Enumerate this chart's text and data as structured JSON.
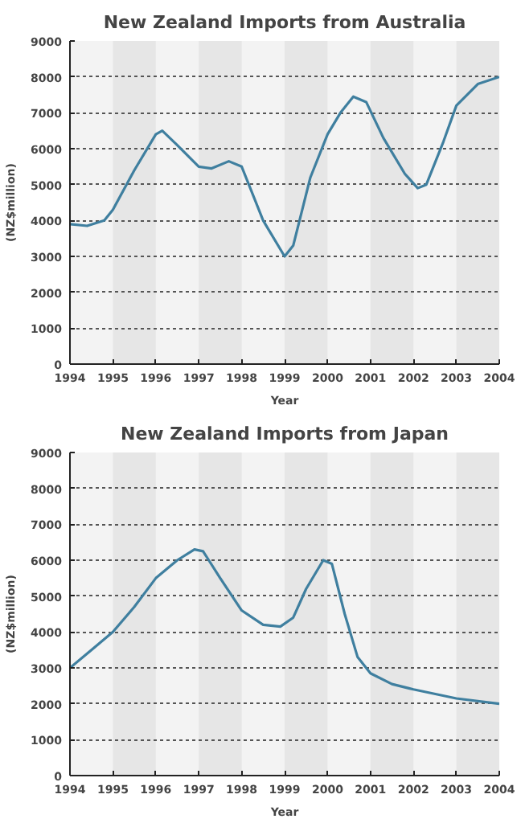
{
  "chart_data": [
    {
      "type": "line",
      "title": "New Zealand Imports from Australia",
      "xlabel": "Year",
      "ylabel": "(NZ$million)",
      "x": [
        1994,
        1994.4,
        1994.8,
        1995,
        1995.5,
        1996,
        1996.15,
        1996.5,
        1997,
        1997.3,
        1997.7,
        1998,
        1998.5,
        1999,
        1999.2,
        1999.6,
        2000,
        2000.3,
        2000.6,
        2000.9,
        2001.3,
        2001.8,
        2002.1,
        2002.3,
        2002.7,
        2003,
        2003.5,
        2004
      ],
      "series": [
        {
          "color": "#3f7f9f",
          "values": [
            3900,
            3850,
            4000,
            4300,
            5400,
            6400,
            6500,
            6100,
            5500,
            5450,
            5650,
            5500,
            4000,
            3000,
            3300,
            5200,
            6400,
            7000,
            7450,
            7300,
            6300,
            5300,
            4900,
            5000,
            6200,
            7200,
            7800,
            8000
          ]
        }
      ],
      "xlim": [
        1994,
        2004
      ],
      "xticks": [
        1994,
        1995,
        1996,
        1997,
        1998,
        1999,
        2000,
        2001,
        2002,
        2003,
        2004
      ],
      "ylim": [
        0,
        9000
      ],
      "yticks": [
        0,
        1000,
        2000,
        3000,
        4000,
        5000,
        6000,
        7000,
        8000,
        9000
      ],
      "grid": "y",
      "line_style": "solid",
      "bands": [
        {
          "axis": "x",
          "from": 1995,
          "to": 1996,
          "color": "#e6e6e6"
        },
        {
          "axis": "x",
          "from": 1997,
          "to": 1998,
          "color": "#e6e6e6"
        },
        {
          "axis": "x",
          "from": 1999,
          "to": 2000,
          "color": "#e6e6e6"
        },
        {
          "axis": "x",
          "from": 2001,
          "to": 2002,
          "color": "#e6e6e6"
        },
        {
          "axis": "x",
          "from": 2003,
          "to": 2004,
          "color": "#e6e6e6"
        }
      ]
    },
    {
      "type": "line",
      "title": "New Zealand Imports from Japan",
      "xlabel": "Year",
      "ylabel": "(NZ$million)",
      "x": [
        1994,
        1994.5,
        1995,
        1995.5,
        1996,
        1996.5,
        1996.9,
        1997.1,
        1997.5,
        1998,
        1998.5,
        1998.9,
        1999.2,
        1999.5,
        1999.9,
        2000.1,
        2000.4,
        2000.7,
        2001,
        2001.5,
        2002,
        2003,
        2004
      ],
      "series": [
        {
          "color": "#3f7f9f",
          "values": [
            3000,
            3500,
            4000,
            4700,
            5500,
            6000,
            6300,
            6250,
            5500,
            4600,
            4200,
            4150,
            4400,
            5200,
            6000,
            5900,
            4500,
            3300,
            2850,
            2550,
            2400,
            2150,
            2000
          ]
        }
      ],
      "xlim": [
        1994,
        2004
      ],
      "xticks": [
        1994,
        1995,
        1996,
        1997,
        1998,
        1999,
        2000,
        2001,
        2002,
        2003,
        2004
      ],
      "ylim": [
        0,
        9000
      ],
      "yticks": [
        0,
        1000,
        2000,
        3000,
        4000,
        5000,
        6000,
        7000,
        8000,
        9000
      ],
      "grid": "y",
      "line_style": "solid",
      "bands": [
        {
          "axis": "x",
          "from": 1995,
          "to": 1996,
          "color": "#e6e6e6"
        },
        {
          "axis": "x",
          "from": 1997,
          "to": 1998,
          "color": "#e6e6e6"
        },
        {
          "axis": "x",
          "from": 1999,
          "to": 2000,
          "color": "#e6e6e6"
        },
        {
          "axis": "x",
          "from": 2001,
          "to": 2002,
          "color": "#e6e6e6"
        },
        {
          "axis": "x",
          "from": 2003,
          "to": 2004,
          "color": "#e6e6e6"
        }
      ]
    }
  ]
}
